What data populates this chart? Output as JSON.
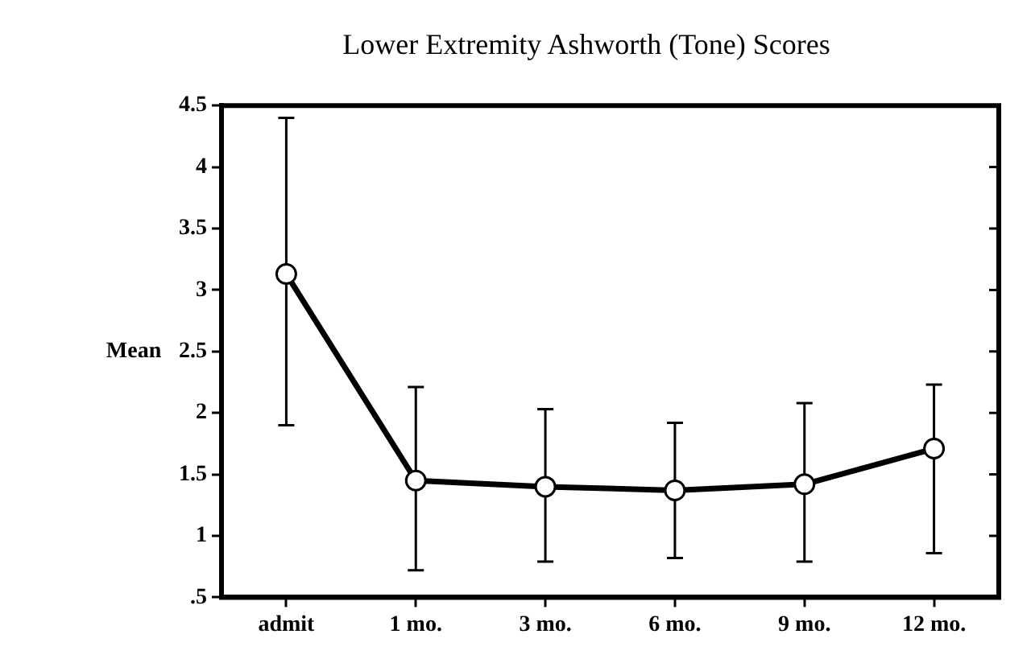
{
  "chart_data": {
    "type": "line",
    "title": "Lower Extremity Ashworth (Tone) Scores",
    "ylabel": "Mean",
    "categories": [
      "admit",
      "1 mo.",
      "3 mo.",
      "6 mo.",
      "9 mo.",
      "12 mo."
    ],
    "values": [
      3.13,
      1.45,
      1.4,
      1.37,
      1.42,
      1.71
    ],
    "errors": [
      [
        1.9,
        4.4
      ],
      [
        0.72,
        2.21
      ],
      [
        0.79,
        2.03
      ],
      [
        0.82,
        1.92
      ],
      [
        0.79,
        2.08
      ],
      [
        0.86,
        2.23
      ]
    ],
    "color": "#000000",
    "marker": "circle",
    "line_style": "solid",
    "grid": false,
    "legend": false,
    "ylim": [
      0.5,
      4.5
    ],
    "yticks": [
      {
        "value": 0.5,
        "label": ".5"
      },
      1,
      1.5,
      2,
      2.5,
      3,
      3.5,
      4,
      4.5
    ]
  }
}
